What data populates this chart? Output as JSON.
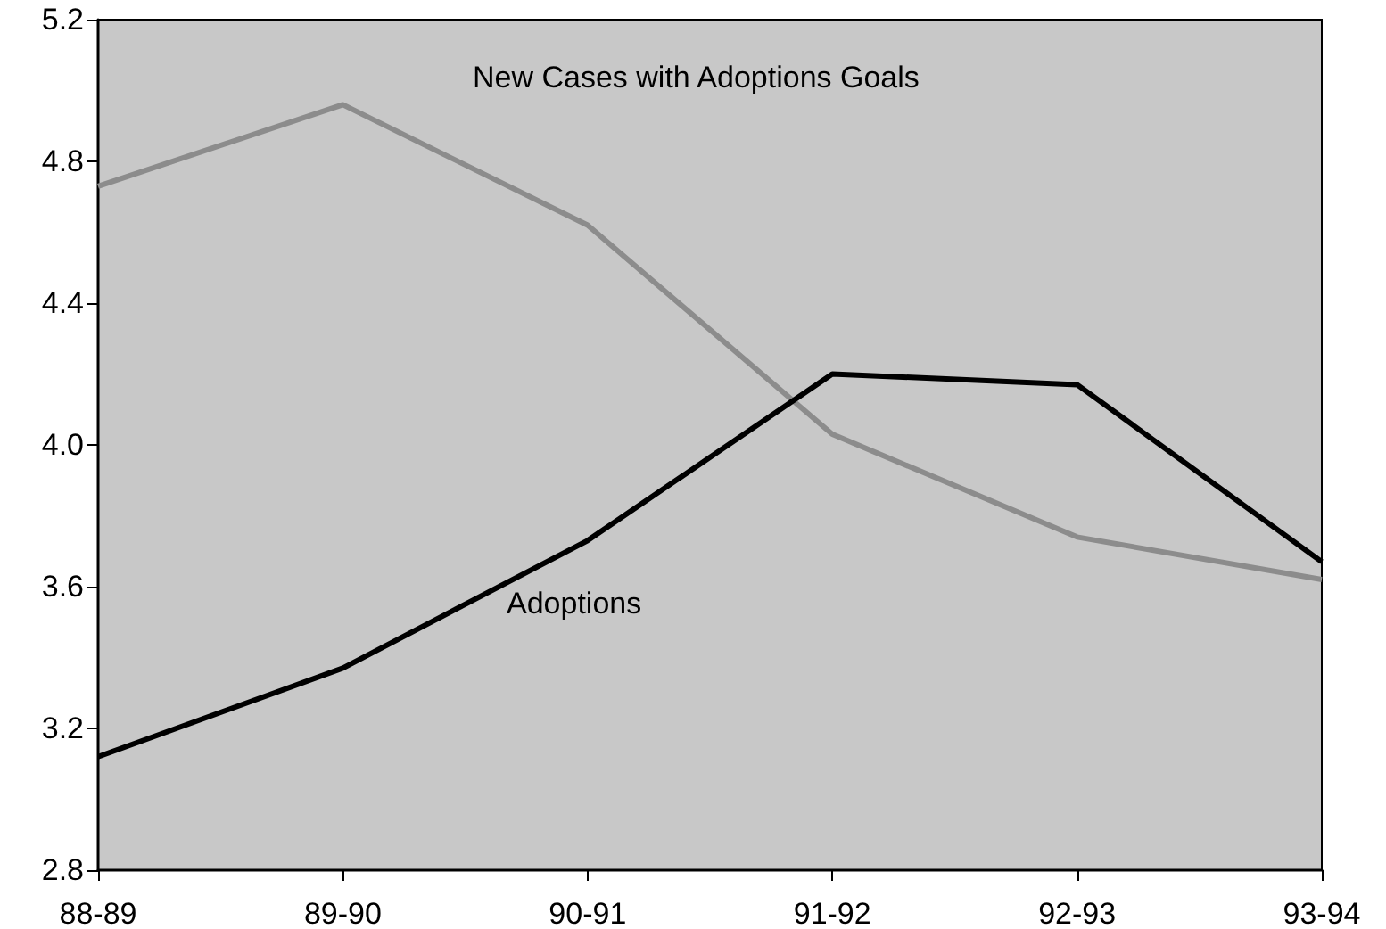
{
  "chart_data": {
    "type": "line",
    "categories": [
      "88-89",
      "89-90",
      "90-91",
      "91-92",
      "92-93",
      "93-94"
    ],
    "series": [
      {
        "name": "New Cases with Adoptions Goals",
        "color": "#8c8c8c",
        "values": [
          4.73,
          4.96,
          4.62,
          4.03,
          3.74,
          3.62
        ]
      },
      {
        "name": "Adoptions",
        "color": "#000000",
        "values": [
          3.12,
          3.37,
          3.73,
          4.2,
          4.17,
          3.67
        ]
      }
    ],
    "ylim": [
      2.8,
      5.2
    ],
    "yticks": [
      2.8,
      3.2,
      3.6,
      {
        "value": 4,
        "label": "4.0"
      },
      4.4,
      4.8,
      5.2
    ],
    "grid": false,
    "legend": false,
    "marker": "none",
    "line_style": "solid"
  }
}
